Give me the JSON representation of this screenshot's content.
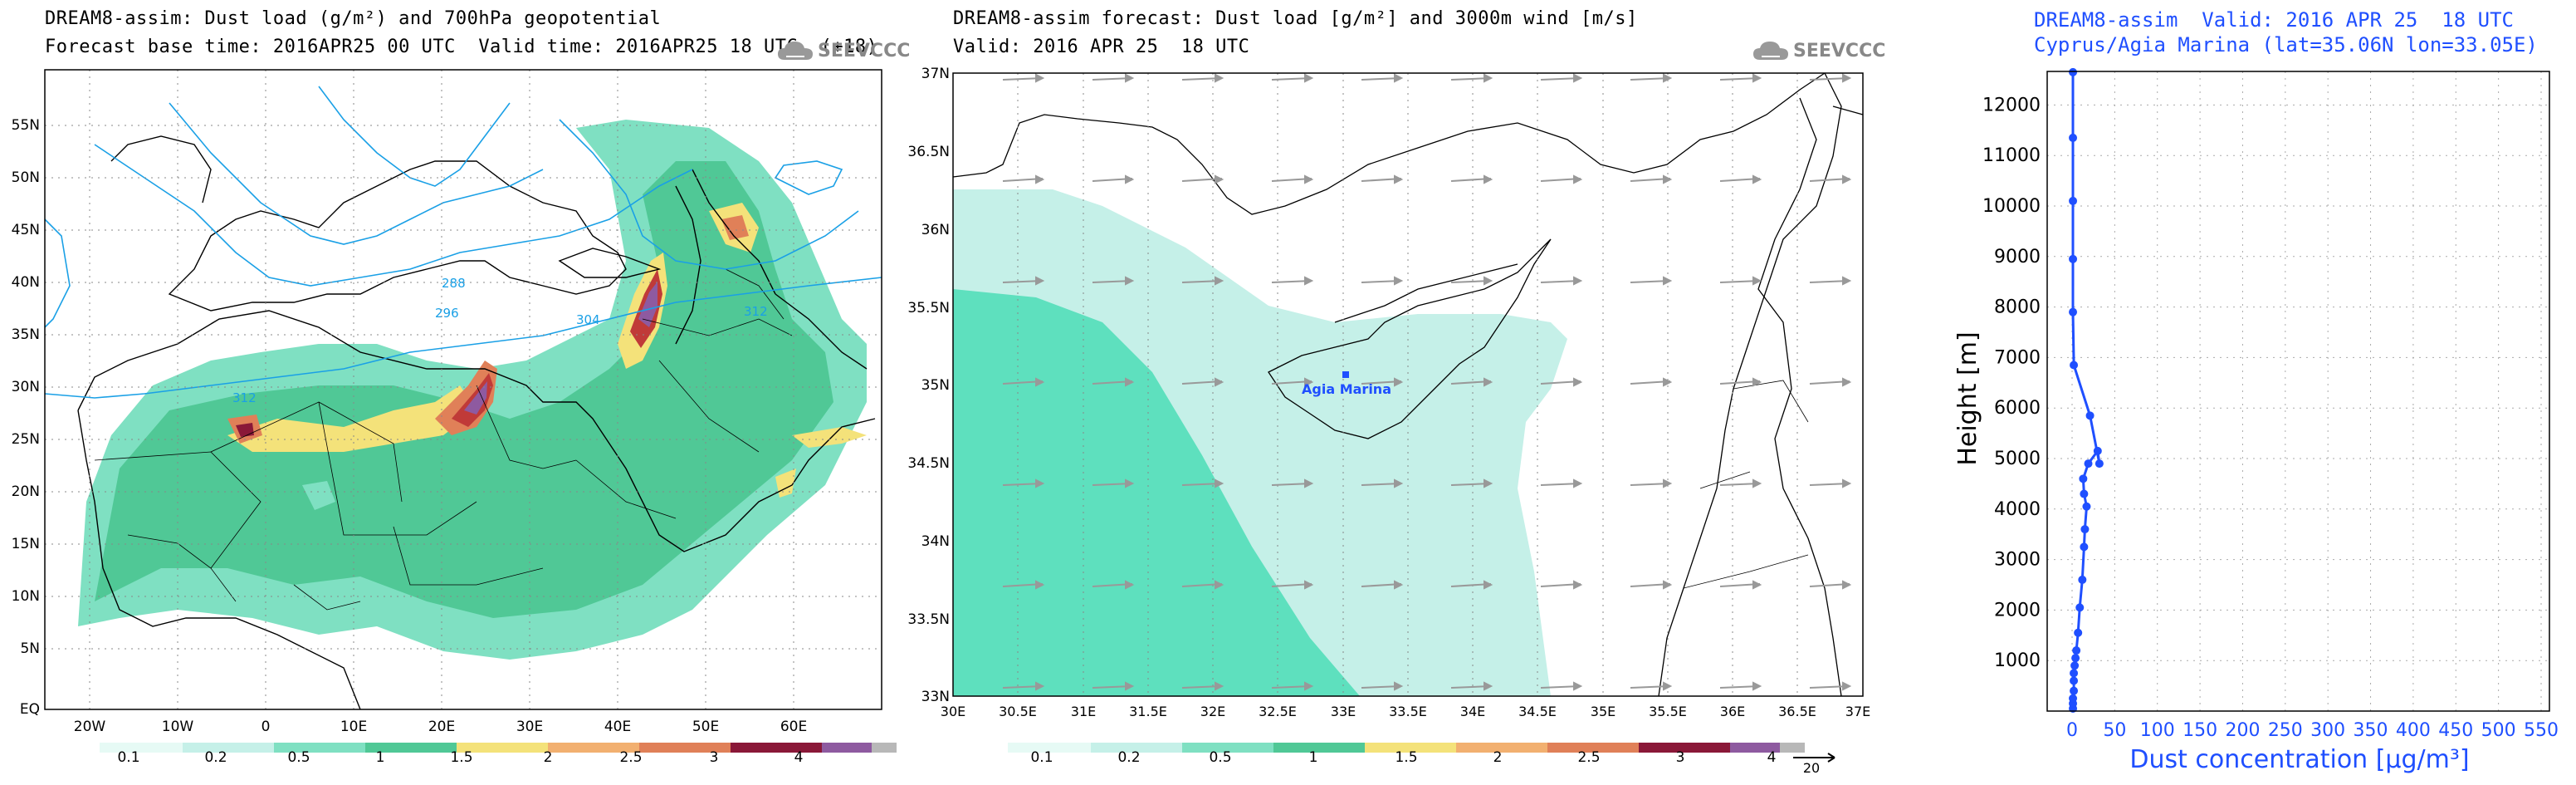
{
  "panel_left": {
    "title_line1": "DREAM8-assim: Dust load (g/m²) and 700hPa geopotential",
    "title_line2": "Forecast base time: 2016APR25 00 UTC  Valid time: 2016APR25 18 UTC  (+18)",
    "logo_text": "SEEVCCC",
    "lat_labels": [
      "55N",
      "50N",
      "45N",
      "40N",
      "35N",
      "30N",
      "25N",
      "20N",
      "15N",
      "10N",
      "5N",
      "EQ"
    ],
    "lon_labels": [
      "20W",
      "10W",
      "0",
      "10E",
      "20E",
      "30E",
      "40E",
      "50E",
      "60E"
    ],
    "contour_labels": [
      "288",
      "296",
      "304",
      "312",
      "312"
    ],
    "colorbar_labels": [
      "0.1",
      "0.2",
      "0.5",
      "1",
      "1.5",
      "2",
      "2.5",
      "3",
      "4"
    ],
    "colorbar_colors": [
      "#c5f0e8",
      "#7fe0c2",
      "#50c896",
      "#f4e27a",
      "#f2b070",
      "#e08058",
      "#c03a38",
      "#8a1838",
      "#8e5aa0",
      "#b8b8b8"
    ]
  },
  "panel_mid": {
    "title_line1": "DREAM8-assim forecast: Dust load [g/m²] and 3000m wind [m/s]",
    "title_line2": "Valid: 2016 APR 25  18 UTC",
    "logo_text": "SEEVCCC",
    "station_label": "Agia Marina",
    "lat_labels": [
      "37N",
      "36.5N",
      "36N",
      "35.5N",
      "35N",
      "34.5N",
      "34N",
      "33.5N",
      "33N"
    ],
    "lon_labels": [
      "30E",
      "30.5E",
      "31E",
      "31.5E",
      "32E",
      "32.5E",
      "33E",
      "33.5E",
      "34E",
      "34.5E",
      "35E",
      "35.5E",
      "36E",
      "36.5E",
      "37E"
    ],
    "colorbar_labels": [
      "0.1",
      "0.2",
      "0.5",
      "1",
      "1.5",
      "2",
      "2.5",
      "3",
      "4"
    ],
    "wind_ref_label": "20"
  },
  "panel_right": {
    "title_line1": "DREAM8-assim  Valid: 2016 APR 25  18 UTC",
    "title_line2": "Cyprus/Agia Marina (lat=35.06N lon=33.05E)",
    "ylabel": "Height [m]",
    "xlabel": "Dust concentration [µg/m³]",
    "line_color": "#1f4fff"
  },
  "chart_data": {
    "type": "line",
    "title": "DREAM8-assim  Valid: 2016 APR 25  18 UTC",
    "subtitle": "Cyprus/Agia Marina (lat=35.06N lon=33.05E)",
    "xlabel": "Dust concentration [µg/m³]",
    "ylabel": "Height [m]",
    "xlim": [
      0,
      550
    ],
    "ylim": [
      0,
      12500
    ],
    "x_ticks": [
      0,
      50,
      100,
      150,
      200,
      250,
      300,
      350,
      400,
      450,
      500,
      550
    ],
    "y_ticks": [
      1000,
      2000,
      3000,
      4000,
      5000,
      6000,
      7000,
      8000,
      9000,
      10000,
      11000,
      12000
    ],
    "grid": true,
    "series": [
      {
        "x": [
          1,
          1,
          1,
          2,
          2,
          2,
          3,
          4,
          5,
          7,
          9,
          12,
          14,
          15,
          17,
          14,
          13,
          19,
          30,
          32,
          21,
          2,
          1,
          1,
          1,
          1,
          1
        ],
        "y": [
          50,
          150,
          250,
          400,
          600,
          750,
          900,
          1050,
          1200,
          1550,
          2050,
          2600,
          3250,
          3600,
          4050,
          4300,
          4600,
          4900,
          5150,
          4900,
          5850,
          6850,
          7900,
          8950,
          10100,
          11350,
          12650
        ]
      }
    ]
  }
}
